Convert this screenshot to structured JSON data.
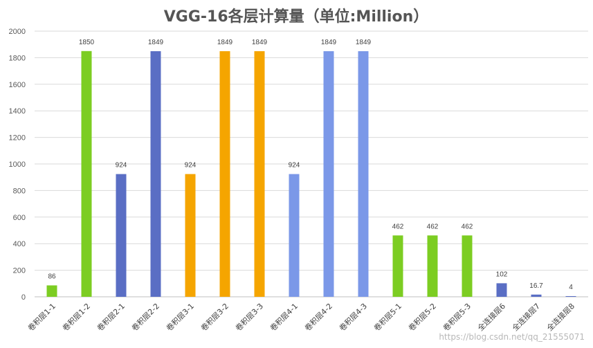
{
  "chart_data": {
    "type": "bar",
    "title": "VGG-16各层计算量（单位:Million）",
    "xlabel": "",
    "ylabel": "",
    "ylim": [
      0,
      2000
    ],
    "yticks": [
      0,
      200,
      400,
      600,
      800,
      1000,
      1200,
      1400,
      1600,
      1800,
      2000
    ],
    "grid": true,
    "legend": "none",
    "categories": [
      "卷积层1-1",
      "卷积层1-2",
      "卷积层2-1",
      "卷积层2-2",
      "卷积层3-1",
      "卷积层3-2",
      "卷积层3-3",
      "卷积层4-1",
      "卷积层4-2",
      "卷积层4-3",
      "卷积层5-1",
      "卷积层5-2",
      "卷积层5-3",
      "全连接层6",
      "全连接层7",
      "全连接层8"
    ],
    "values": [
      86,
      1850,
      924,
      1849,
      924,
      1849,
      1849,
      924,
      1849,
      1849,
      462,
      462,
      462,
      102,
      16.7,
      4
    ],
    "data_labels": [
      "86",
      "1850",
      "924",
      "1849",
      "924",
      "1849",
      "1849",
      "924",
      "1849",
      "1849",
      "462",
      "462",
      "462",
      "102",
      "16.7",
      "4"
    ],
    "colors": [
      "#7ccd22",
      "#7ccd22",
      "#5a6ec4",
      "#5a6ec4",
      "#f5a500",
      "#f5a500",
      "#f5a500",
      "#7b98e8",
      "#7b98e8",
      "#7b98e8",
      "#7ccd22",
      "#7ccd22",
      "#7ccd22",
      "#5a6ec4",
      "#5a6ec4",
      "#5a6ec4"
    ]
  },
  "watermark": "https://blog.csdn.net/qq_21555071"
}
